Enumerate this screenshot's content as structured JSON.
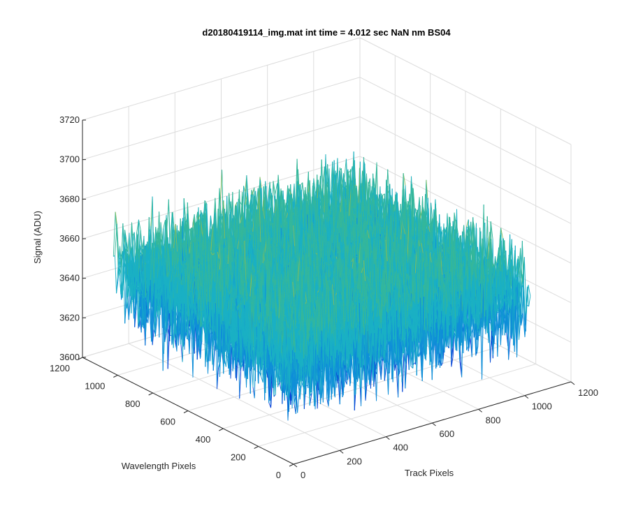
{
  "chart_data": {
    "type": "surface3d",
    "title": "d20180419114_img.mat int time = 4.012 sec  NaN nm BS04",
    "xlabel": "Track Pixels",
    "ylabel": "Wavelength Pixels",
    "zlabel": "Signal (ADU)",
    "xlim": [
      0,
      1200
    ],
    "ylim": [
      0,
      1200
    ],
    "zlim": [
      3600,
      3720
    ],
    "x_ticks": [
      "0",
      "200",
      "400",
      "600",
      "800",
      "1000",
      "1200"
    ],
    "y_ticks": [
      "0",
      "200",
      "400",
      "600",
      "800",
      "1000",
      "1200"
    ],
    "z_ticks": [
      "3600",
      "3620",
      "3640",
      "3660",
      "3680",
      "3700",
      "3720"
    ],
    "grid": true,
    "data_extent": {
      "x": [
        0,
        1024
      ],
      "y": [
        0,
        1024
      ]
    },
    "signal_mean": 3650,
    "signal_range": [
      3615,
      3705
    ],
    "colormap": [
      "#0a3fd6",
      "#0f8ed8",
      "#1ab0c4",
      "#35b79a",
      "#86bd5a",
      "#d9b52d"
    ]
  }
}
